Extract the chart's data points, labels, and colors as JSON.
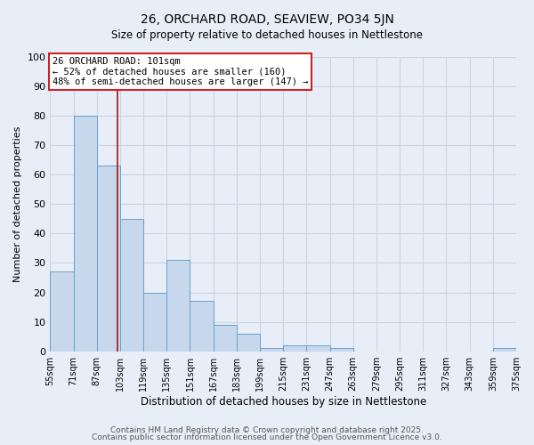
{
  "title": "26, ORCHARD ROAD, SEAVIEW, PO34 5JN",
  "subtitle": "Size of property relative to detached houses in Nettlestone",
  "xlabel": "Distribution of detached houses by size in Nettlestone",
  "ylabel": "Number of detached properties",
  "bins": [
    "55sqm",
    "71sqm",
    "87sqm",
    "103sqm",
    "119sqm",
    "135sqm",
    "151sqm",
    "167sqm",
    "183sqm",
    "199sqm",
    "215sqm",
    "231sqm",
    "247sqm",
    "263sqm",
    "279sqm",
    "295sqm",
    "311sqm",
    "327sqm",
    "343sqm",
    "359sqm",
    "375sqm"
  ],
  "values": [
    27,
    80,
    63,
    45,
    20,
    31,
    17,
    9,
    6,
    1,
    2,
    2,
    1,
    0,
    0,
    0,
    0,
    0,
    0,
    1,
    0
  ],
  "bar_color": "#c8d8ec",
  "bar_edge_color": "#6ba0cc",
  "vline_color": "#aa1111",
  "annotation_text": "26 ORCHARD ROAD: 101sqm\n← 52% of detached houses are smaller (160)\n48% of semi-detached houses are larger (147) →",
  "annotation_box_color": "#ffffff",
  "annotation_box_edge_color": "#cc2222",
  "ylim": [
    0,
    100
  ],
  "yticks": [
    0,
    10,
    20,
    30,
    40,
    50,
    60,
    70,
    80,
    90,
    100
  ],
  "grid_color": "#c8d4e4",
  "background_color": "#e8eef8",
  "plot_bg_color": "#e8eef8",
  "footer_line1": "Contains HM Land Registry data © Crown copyright and database right 2025.",
  "footer_line2": "Contains public sector information licensed under the Open Government Licence v3.0."
}
